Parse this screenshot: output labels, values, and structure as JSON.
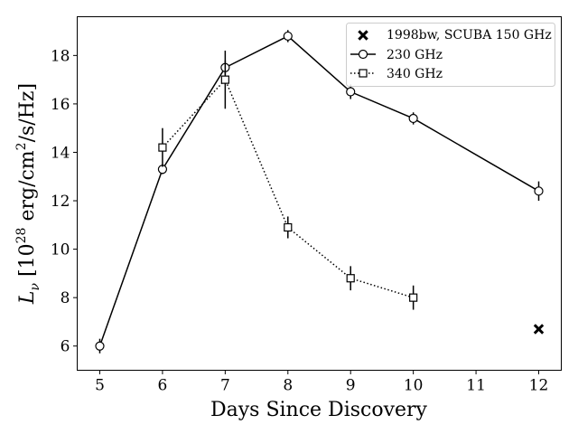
{
  "chart_data": {
    "type": "line",
    "xlabel": "Days Since Discovery",
    "ylabel": "L_ν [10^28 erg/cm^2/s/Hz]",
    "ylabel_parts": {
      "symbol": "L",
      "symbol_sub": "ν",
      "open": " [10",
      "exp": "28",
      "mid": " erg/cm",
      "exp2": "2",
      "close": "/s/Hz]"
    },
    "xlim": [
      4.64,
      12.36
    ],
    "ylim": [
      5.0,
      19.6
    ],
    "x_ticks": [
      5,
      6,
      7,
      8,
      9,
      10,
      11,
      12
    ],
    "y_ticks": [
      6,
      8,
      10,
      12,
      14,
      16,
      18
    ],
    "grid": false,
    "legend_position": "top-right",
    "series": [
      {
        "name": "1998bw, SCUBA 150 GHz",
        "marker": "x-filled",
        "linestyle": "none",
        "x": [
          12
        ],
        "y": [
          6.7
        ],
        "yerr": [
          0
        ]
      },
      {
        "name": "230 GHz",
        "marker": "circle",
        "linestyle": "solid",
        "x": [
          5,
          6,
          7,
          8,
          9,
          10,
          12
        ],
        "y": [
          6.0,
          13.3,
          17.5,
          18.8,
          16.5,
          15.4,
          12.4
        ],
        "yerr": [
          0.3,
          0.2,
          0.3,
          0.25,
          0.3,
          0.25,
          0.4
        ]
      },
      {
        "name": "340 GHz",
        "marker": "square",
        "linestyle": "dotted",
        "x": [
          6,
          7,
          8,
          9,
          10
        ],
        "y": [
          14.2,
          17.0,
          10.9,
          8.8,
          8.0
        ],
        "yerr": [
          0.8,
          1.2,
          0.45,
          0.5,
          0.5
        ]
      }
    ]
  }
}
